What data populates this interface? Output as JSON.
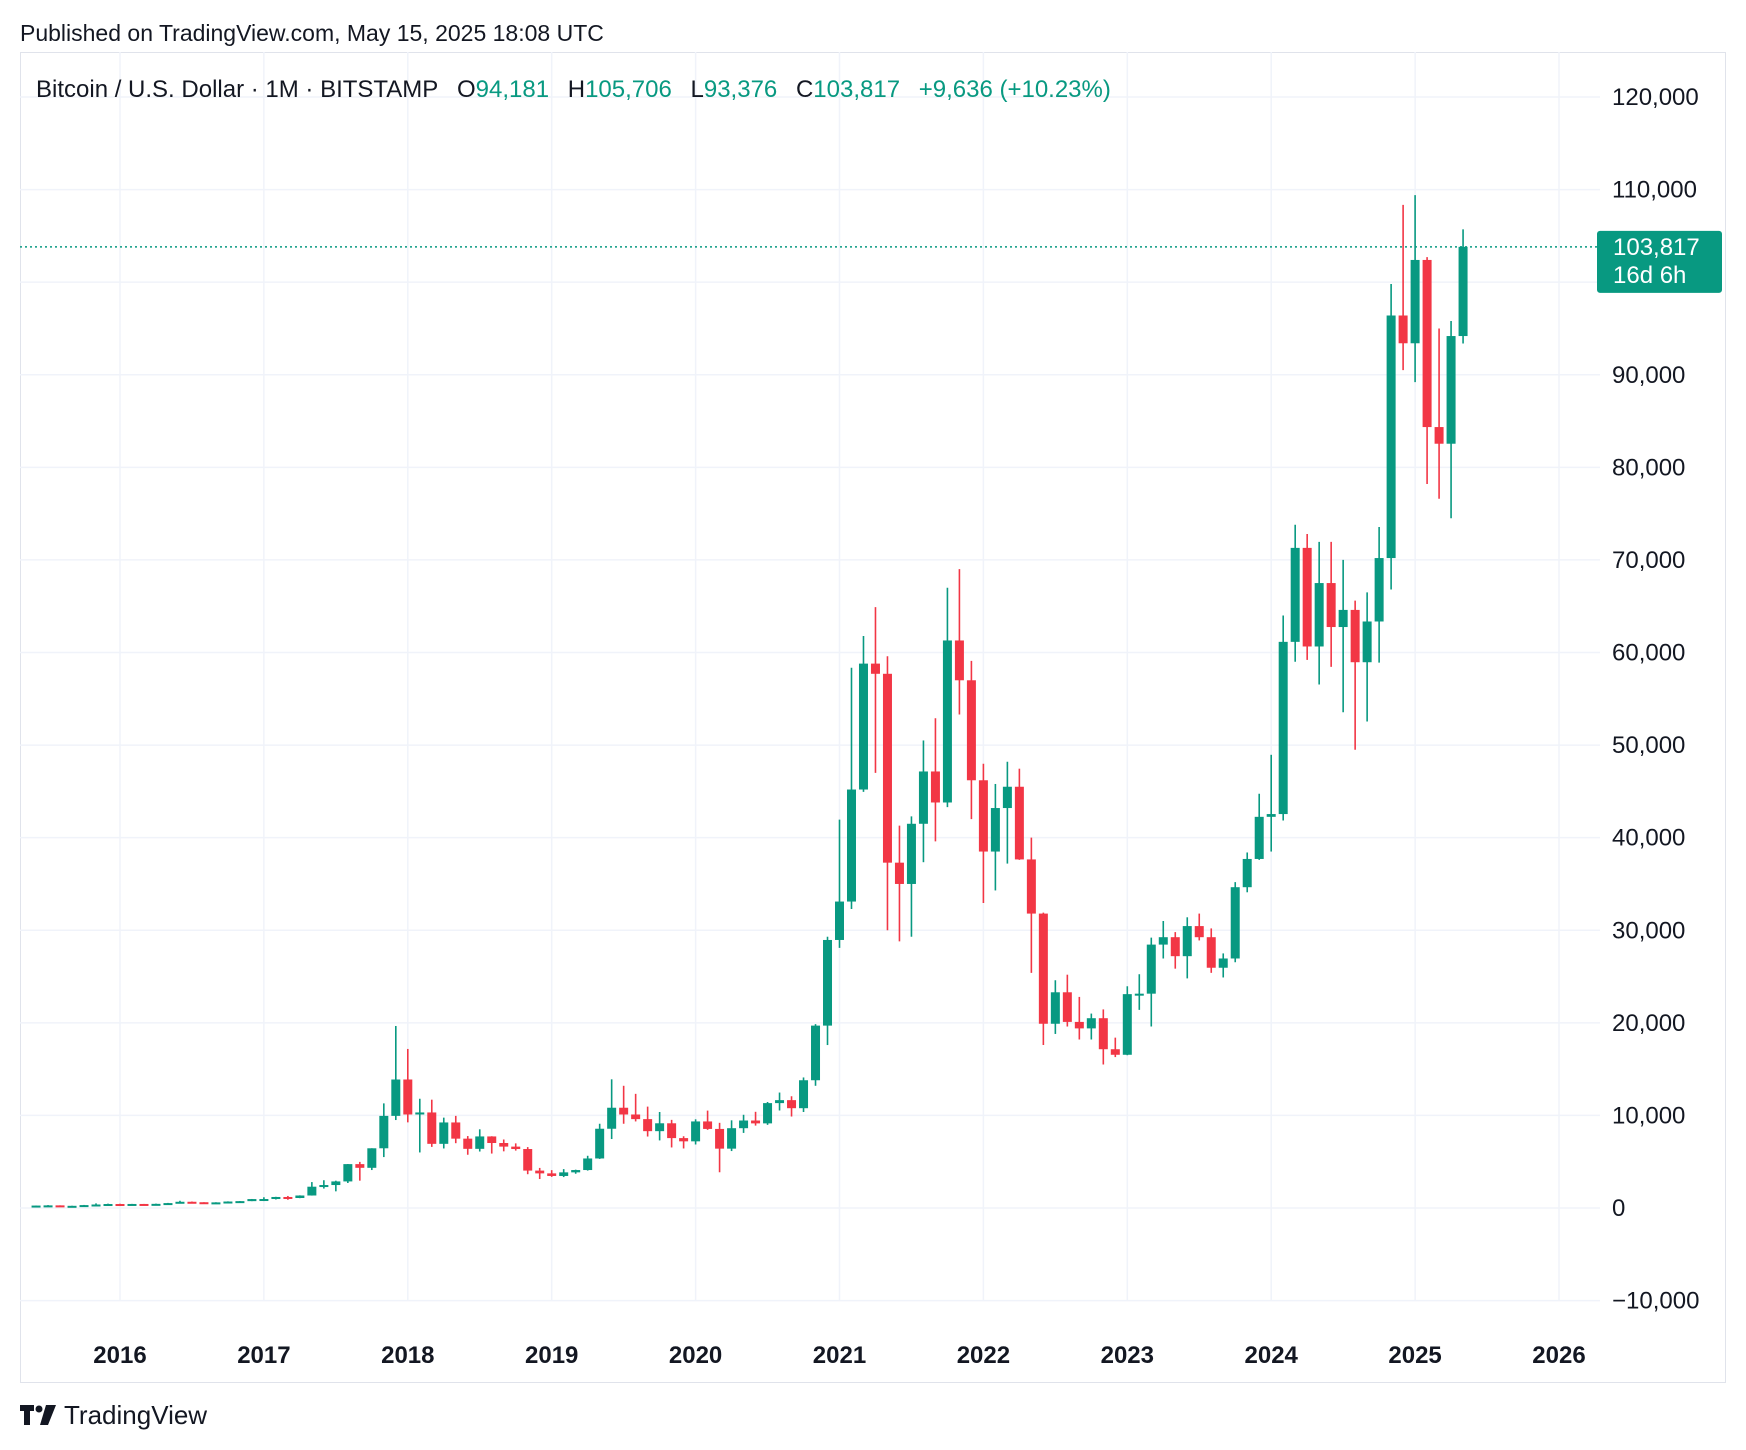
{
  "header": {
    "published": "Published on TradingView.com, May 15, 2025 18:08 UTC"
  },
  "legend": {
    "symbol": "Bitcoin / U.S. Dollar · 1M · BITSTAMP",
    "o_label": "O",
    "o_value": "94,181",
    "h_label": "H",
    "h_value": "105,706",
    "l_label": "L",
    "l_value": "93,376",
    "c_label": "C",
    "c_value": "103,817",
    "change": "+9,636 (+10.23%)"
  },
  "last_price": {
    "value": "103,817",
    "countdown": "16d 6h"
  },
  "brand": {
    "name": "TradingView"
  },
  "colors": {
    "up": "#089981",
    "down": "#f23645",
    "grid": "#f0f3fa",
    "text": "#131722"
  },
  "chart_data": {
    "type": "candlestick",
    "interval": "1M",
    "ylim": [
      -10000,
      120000
    ],
    "y_ticks": [
      120000,
      110000,
      90000,
      80000,
      70000,
      60000,
      50000,
      40000,
      30000,
      20000,
      10000,
      0,
      -10000
    ],
    "y_tick_labels": [
      "120,000",
      "110,000",
      "90,000",
      "80,000",
      "70,000",
      "60,000",
      "50,000",
      "40,000",
      "30,000",
      "20,000",
      "10,000",
      "0",
      "−10,000"
    ],
    "x_ticks": [
      "2016",
      "2017",
      "2018",
      "2019",
      "2020",
      "2021",
      "2022",
      "2023",
      "2024",
      "2025",
      "2026"
    ],
    "xlim": [
      "2015-05",
      "2026-07"
    ],
    "grid": true,
    "last_price_line": 103817,
    "candles": [
      {
        "t": "2015-06",
        "o": 230,
        "h": 265,
        "l": 215,
        "c": 263
      },
      {
        "t": "2015-07",
        "o": 263,
        "h": 315,
        "l": 250,
        "c": 284
      },
      {
        "t": "2015-08",
        "o": 284,
        "h": 285,
        "l": 198,
        "c": 230
      },
      {
        "t": "2015-09",
        "o": 230,
        "h": 245,
        "l": 220,
        "c": 236
      },
      {
        "t": "2015-10",
        "o": 236,
        "h": 330,
        "l": 235,
        "c": 314
      },
      {
        "t": "2015-11",
        "o": 314,
        "h": 500,
        "l": 300,
        "c": 378
      },
      {
        "t": "2015-12",
        "o": 378,
        "h": 470,
        "l": 350,
        "c": 430
      },
      {
        "t": "2016-01",
        "o": 430,
        "h": 460,
        "l": 350,
        "c": 368
      },
      {
        "t": "2016-02",
        "o": 368,
        "h": 445,
        "l": 365,
        "c": 436
      },
      {
        "t": "2016-03",
        "o": 436,
        "h": 440,
        "l": 400,
        "c": 416
      },
      {
        "t": "2016-04",
        "o": 416,
        "h": 470,
        "l": 412,
        "c": 448
      },
      {
        "t": "2016-05",
        "o": 448,
        "h": 550,
        "l": 440,
        "c": 530
      },
      {
        "t": "2016-06",
        "o": 530,
        "h": 780,
        "l": 525,
        "c": 673
      },
      {
        "t": "2016-07",
        "o": 673,
        "h": 700,
        "l": 580,
        "c": 624
      },
      {
        "t": "2016-08",
        "o": 624,
        "h": 625,
        "l": 470,
        "c": 573
      },
      {
        "t": "2016-09",
        "o": 573,
        "h": 620,
        "l": 570,
        "c": 608
      },
      {
        "t": "2016-10",
        "o": 608,
        "h": 720,
        "l": 605,
        "c": 700
      },
      {
        "t": "2016-11",
        "o": 700,
        "h": 750,
        "l": 680,
        "c": 742
      },
      {
        "t": "2016-12",
        "o": 742,
        "h": 975,
        "l": 740,
        "c": 964
      },
      {
        "t": "2017-01",
        "o": 964,
        "h": 1160,
        "l": 750,
        "c": 970
      },
      {
        "t": "2017-02",
        "o": 970,
        "h": 1210,
        "l": 920,
        "c": 1190
      },
      {
        "t": "2017-03",
        "o": 1190,
        "h": 1300,
        "l": 890,
        "c": 1080
      },
      {
        "t": "2017-04",
        "o": 1080,
        "h": 1370,
        "l": 1060,
        "c": 1350
      },
      {
        "t": "2017-05",
        "o": 1350,
        "h": 2800,
        "l": 1340,
        "c": 2300
      },
      {
        "t": "2017-06",
        "o": 2300,
        "h": 3000,
        "l": 2100,
        "c": 2480
      },
      {
        "t": "2017-07",
        "o": 2480,
        "h": 2950,
        "l": 1800,
        "c": 2870
      },
      {
        "t": "2017-08",
        "o": 2870,
        "h": 4750,
        "l": 2700,
        "c": 4740
      },
      {
        "t": "2017-09",
        "o": 4740,
        "h": 4980,
        "l": 2950,
        "c": 4340
      },
      {
        "t": "2017-10",
        "o": 4340,
        "h": 6450,
        "l": 4100,
        "c": 6450
      },
      {
        "t": "2017-11",
        "o": 6450,
        "h": 11300,
        "l": 5500,
        "c": 9950
      },
      {
        "t": "2017-12",
        "o": 9950,
        "h": 19660,
        "l": 9500,
        "c": 13880
      },
      {
        "t": "2018-01",
        "o": 13880,
        "h": 17180,
        "l": 9250,
        "c": 10100
      },
      {
        "t": "2018-02",
        "o": 10100,
        "h": 11800,
        "l": 6000,
        "c": 10320
      },
      {
        "t": "2018-03",
        "o": 10320,
        "h": 11700,
        "l": 6600,
        "c": 6930
      },
      {
        "t": "2018-04",
        "o": 6930,
        "h": 9760,
        "l": 6430,
        "c": 9240
      },
      {
        "t": "2018-05",
        "o": 9240,
        "h": 9950,
        "l": 7000,
        "c": 7490
      },
      {
        "t": "2018-06",
        "o": 7490,
        "h": 7770,
        "l": 5750,
        "c": 6390
      },
      {
        "t": "2018-07",
        "o": 6390,
        "h": 8500,
        "l": 6100,
        "c": 7730
      },
      {
        "t": "2018-08",
        "o": 7730,
        "h": 7750,
        "l": 5880,
        "c": 7020
      },
      {
        "t": "2018-09",
        "o": 7020,
        "h": 7400,
        "l": 6120,
        "c": 6630
      },
      {
        "t": "2018-10",
        "o": 6630,
        "h": 6980,
        "l": 6200,
        "c": 6370
      },
      {
        "t": "2018-11",
        "o": 6370,
        "h": 6580,
        "l": 3650,
        "c": 4040
      },
      {
        "t": "2018-12",
        "o": 4040,
        "h": 4330,
        "l": 3130,
        "c": 3740
      },
      {
        "t": "2019-01",
        "o": 3740,
        "h": 4090,
        "l": 3360,
        "c": 3460
      },
      {
        "t": "2019-02",
        "o": 3460,
        "h": 4200,
        "l": 3340,
        "c": 3850
      },
      {
        "t": "2019-03",
        "o": 3850,
        "h": 4140,
        "l": 3700,
        "c": 4100
      },
      {
        "t": "2019-04",
        "o": 4100,
        "h": 5640,
        "l": 4040,
        "c": 5350
      },
      {
        "t": "2019-05",
        "o": 5350,
        "h": 9100,
        "l": 5300,
        "c": 8560
      },
      {
        "t": "2019-06",
        "o": 8560,
        "h": 13900,
        "l": 7450,
        "c": 10830
      },
      {
        "t": "2019-07",
        "o": 10830,
        "h": 13200,
        "l": 9100,
        "c": 10100
      },
      {
        "t": "2019-08",
        "o": 10100,
        "h": 12330,
        "l": 9350,
        "c": 9600
      },
      {
        "t": "2019-09",
        "o": 9600,
        "h": 10950,
        "l": 7720,
        "c": 8300
      },
      {
        "t": "2019-10",
        "o": 8300,
        "h": 10370,
        "l": 7300,
        "c": 9150
      },
      {
        "t": "2019-11",
        "o": 9150,
        "h": 9520,
        "l": 6540,
        "c": 7550
      },
      {
        "t": "2019-12",
        "o": 7550,
        "h": 7750,
        "l": 6430,
        "c": 7200
      },
      {
        "t": "2020-01",
        "o": 7200,
        "h": 9580,
        "l": 6860,
        "c": 9350
      },
      {
        "t": "2020-02",
        "o": 9350,
        "h": 10520,
        "l": 8440,
        "c": 8540
      },
      {
        "t": "2020-03",
        "o": 8540,
        "h": 9200,
        "l": 3860,
        "c": 6410
      },
      {
        "t": "2020-04",
        "o": 6410,
        "h": 9470,
        "l": 6150,
        "c": 8620
      },
      {
        "t": "2020-05",
        "o": 8620,
        "h": 10070,
        "l": 8110,
        "c": 9450
      },
      {
        "t": "2020-06",
        "o": 9450,
        "h": 10390,
        "l": 8900,
        "c": 9140
      },
      {
        "t": "2020-07",
        "o": 9140,
        "h": 11450,
        "l": 8980,
        "c": 11330
      },
      {
        "t": "2020-08",
        "o": 11330,
        "h": 12470,
        "l": 10530,
        "c": 11650
      },
      {
        "t": "2020-09",
        "o": 11650,
        "h": 12070,
        "l": 9880,
        "c": 10780
      },
      {
        "t": "2020-10",
        "o": 10780,
        "h": 14100,
        "l": 10370,
        "c": 13800
      },
      {
        "t": "2020-11",
        "o": 13800,
        "h": 19860,
        "l": 13200,
        "c": 19700
      },
      {
        "t": "2020-12",
        "o": 19700,
        "h": 29300,
        "l": 17600,
        "c": 28950
      },
      {
        "t": "2021-01",
        "o": 28950,
        "h": 41950,
        "l": 28100,
        "c": 33100
      },
      {
        "t": "2021-02",
        "o": 33100,
        "h": 58350,
        "l": 32300,
        "c": 45200
      },
      {
        "t": "2021-03",
        "o": 45200,
        "h": 61780,
        "l": 44950,
        "c": 58800
      },
      {
        "t": "2021-04",
        "o": 58800,
        "h": 64900,
        "l": 47000,
        "c": 57700
      },
      {
        "t": "2021-05",
        "o": 57700,
        "h": 59600,
        "l": 30000,
        "c": 37300
      },
      {
        "t": "2021-06",
        "o": 37300,
        "h": 41300,
        "l": 28800,
        "c": 35000
      },
      {
        "t": "2021-07",
        "o": 35000,
        "h": 42300,
        "l": 29300,
        "c": 41500
      },
      {
        "t": "2021-08",
        "o": 41500,
        "h": 50500,
        "l": 37350,
        "c": 47150
      },
      {
        "t": "2021-09",
        "o": 47150,
        "h": 52900,
        "l": 39600,
        "c": 43800
      },
      {
        "t": "2021-10",
        "o": 43800,
        "h": 67000,
        "l": 43300,
        "c": 61300
      },
      {
        "t": "2021-11",
        "o": 61300,
        "h": 69000,
        "l": 53300,
        "c": 57000
      },
      {
        "t": "2021-12",
        "o": 57000,
        "h": 59100,
        "l": 42000,
        "c": 46200
      },
      {
        "t": "2022-01",
        "o": 46200,
        "h": 47990,
        "l": 32950,
        "c": 38500
      },
      {
        "t": "2022-02",
        "o": 38500,
        "h": 45800,
        "l": 34300,
        "c": 43200
      },
      {
        "t": "2022-03",
        "o": 43200,
        "h": 48200,
        "l": 37200,
        "c": 45500
      },
      {
        "t": "2022-04",
        "o": 45500,
        "h": 47450,
        "l": 37600,
        "c": 37650
      },
      {
        "t": "2022-05",
        "o": 37650,
        "h": 40000,
        "l": 25400,
        "c": 31800
      },
      {
        "t": "2022-06",
        "o": 31800,
        "h": 31900,
        "l": 17600,
        "c": 19900
      },
      {
        "t": "2022-07",
        "o": 19900,
        "h": 24600,
        "l": 18800,
        "c": 23300
      },
      {
        "t": "2022-08",
        "o": 23300,
        "h": 25200,
        "l": 19600,
        "c": 20100
      },
      {
        "t": "2022-09",
        "o": 20100,
        "h": 22800,
        "l": 18200,
        "c": 19400
      },
      {
        "t": "2022-10",
        "o": 19400,
        "h": 21000,
        "l": 18200,
        "c": 20500
      },
      {
        "t": "2022-11",
        "o": 20500,
        "h": 21450,
        "l": 15500,
        "c": 17150
      },
      {
        "t": "2022-12",
        "o": 17150,
        "h": 18400,
        "l": 16300,
        "c": 16550
      },
      {
        "t": "2023-01",
        "o": 16550,
        "h": 23950,
        "l": 16500,
        "c": 23100
      },
      {
        "t": "2023-02",
        "o": 23100,
        "h": 25250,
        "l": 21400,
        "c": 23150
      },
      {
        "t": "2023-03",
        "o": 23150,
        "h": 29200,
        "l": 19600,
        "c": 28450
      },
      {
        "t": "2023-04",
        "o": 28450,
        "h": 31000,
        "l": 26950,
        "c": 29250
      },
      {
        "t": "2023-05",
        "o": 29250,
        "h": 29800,
        "l": 25850,
        "c": 27200
      },
      {
        "t": "2023-06",
        "o": 27200,
        "h": 31400,
        "l": 24800,
        "c": 30450
      },
      {
        "t": "2023-07",
        "o": 30450,
        "h": 31800,
        "l": 28900,
        "c": 29250
      },
      {
        "t": "2023-08",
        "o": 29250,
        "h": 30200,
        "l": 25400,
        "c": 25950
      },
      {
        "t": "2023-09",
        "o": 25950,
        "h": 27500,
        "l": 24900,
        "c": 26950
      },
      {
        "t": "2023-10",
        "o": 26950,
        "h": 35200,
        "l": 26550,
        "c": 34650
      },
      {
        "t": "2023-11",
        "o": 34650,
        "h": 38400,
        "l": 34100,
        "c": 37700
      },
      {
        "t": "2023-12",
        "o": 37700,
        "h": 44750,
        "l": 37600,
        "c": 42250
      },
      {
        "t": "2024-01",
        "o": 42250,
        "h": 48950,
        "l": 38500,
        "c": 42550
      },
      {
        "t": "2024-02",
        "o": 42550,
        "h": 64000,
        "l": 41850,
        "c": 61150
      },
      {
        "t": "2024-03",
        "o": 61150,
        "h": 73800,
        "l": 59000,
        "c": 71300
      },
      {
        "t": "2024-04",
        "o": 71300,
        "h": 72800,
        "l": 59200,
        "c": 60650
      },
      {
        "t": "2024-05",
        "o": 60650,
        "h": 71950,
        "l": 56550,
        "c": 67500
      },
      {
        "t": "2024-06",
        "o": 67500,
        "h": 71950,
        "l": 58450,
        "c": 62750
      },
      {
        "t": "2024-07",
        "o": 62750,
        "h": 70000,
        "l": 53550,
        "c": 64600
      },
      {
        "t": "2024-08",
        "o": 64600,
        "h": 65600,
        "l": 49500,
        "c": 58950
      },
      {
        "t": "2024-09",
        "o": 58950,
        "h": 66500,
        "l": 52550,
        "c": 63350
      },
      {
        "t": "2024-10",
        "o": 63350,
        "h": 73550,
        "l": 58900,
        "c": 70200
      },
      {
        "t": "2024-11",
        "o": 70200,
        "h": 99800,
        "l": 66800,
        "c": 96400
      },
      {
        "t": "2024-12",
        "o": 96400,
        "h": 108350,
        "l": 90500,
        "c": 93400
      },
      {
        "t": "2025-01",
        "o": 93400,
        "h": 109400,
        "l": 89200,
        "c": 102400
      },
      {
        "t": "2025-02",
        "o": 102400,
        "h": 102700,
        "l": 78200,
        "c": 84350
      },
      {
        "t": "2025-03",
        "o": 84350,
        "h": 95000,
        "l": 76600,
        "c": 82550
      },
      {
        "t": "2025-04",
        "o": 82550,
        "h": 95800,
        "l": 74500,
        "c": 94181
      },
      {
        "t": "2025-05",
        "o": 94181,
        "h": 105706,
        "l": 93376,
        "c": 103817
      }
    ]
  }
}
